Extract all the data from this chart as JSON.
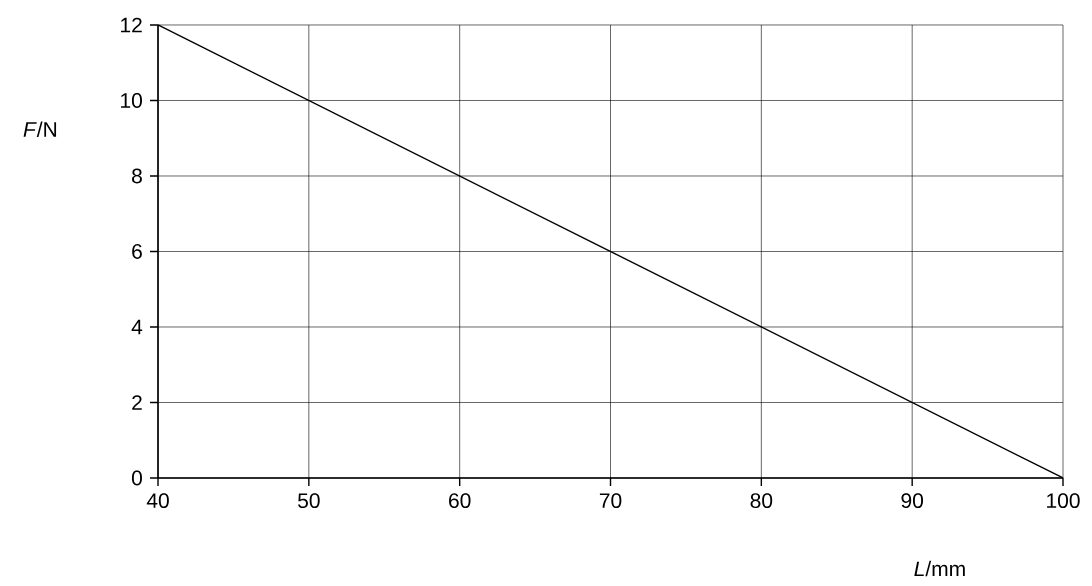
{
  "chart_data": {
    "type": "line",
    "xlabel": "*L*/mm",
    "ylabel": "*F*/N",
    "x": [
      40,
      100
    ],
    "values": [
      12,
      0
    ],
    "color": "#000000",
    "xlim": [
      40,
      100
    ],
    "ylim": [
      0,
      12
    ],
    "xticks": [
      40,
      50,
      60,
      70,
      80,
      90,
      100
    ],
    "yticks": [
      0,
      2,
      4,
      6,
      8,
      10,
      12
    ],
    "grid": true,
    "marker": "none",
    "line_style": "solid"
  }
}
